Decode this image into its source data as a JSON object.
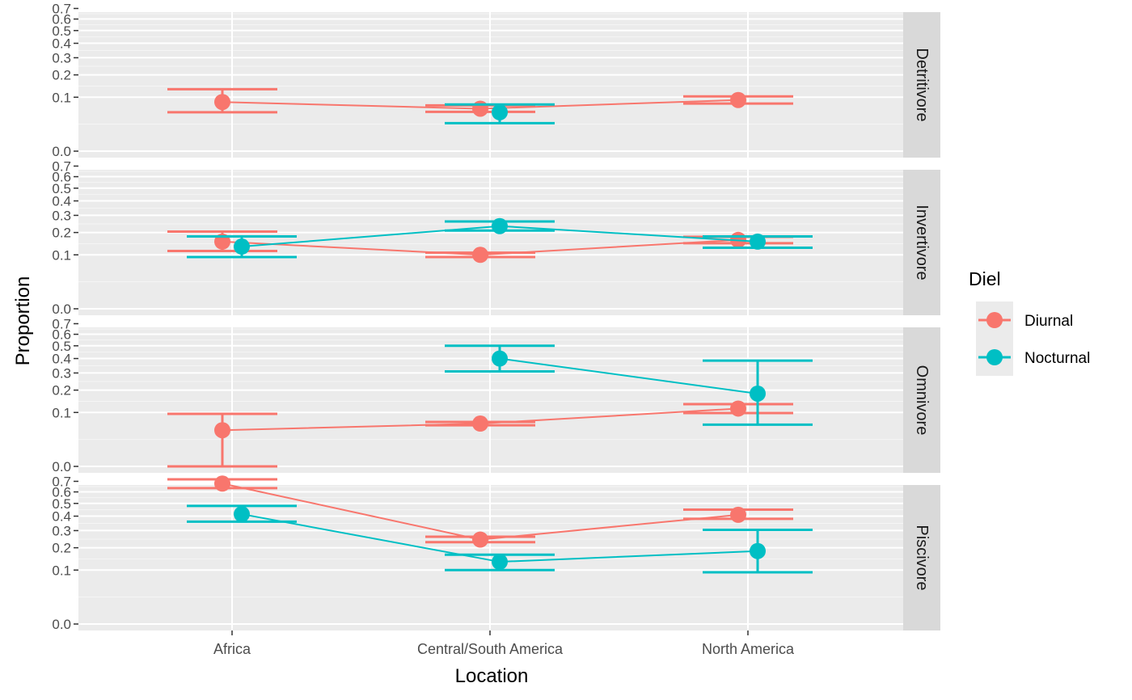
{
  "chart_data": {
    "type": "scatter",
    "subtype": "faceted point-range with connecting lines and error bars",
    "title": "",
    "xlabel": "Location",
    "ylabel": "Proportion",
    "categories": [
      "Africa",
      "Central/South America",
      "North America"
    ],
    "y_scale": "sqrt",
    "ylim": [
      0,
      0.75
    ],
    "y_ticks": [
      0.0,
      0.1,
      0.2,
      0.3,
      0.4,
      0.5,
      0.6,
      0.7
    ],
    "y_tick_labels": [
      "0.0",
      "0.1",
      "0.2",
      "0.3",
      "0.4",
      "0.5",
      "0.6",
      "0.7"
    ],
    "grid": true,
    "legend": {
      "title": "Diel",
      "position": "right",
      "entries": [
        {
          "name": "Diurnal",
          "color": "#F8766D"
        },
        {
          "name": "Nocturnal",
          "color": "#00BFC4"
        }
      ]
    },
    "facets": [
      {
        "label": "Detritivore",
        "series": [
          {
            "name": "Diurnal",
            "color": "#F8766D",
            "values": [
              0.083,
              0.062,
              0.09
            ],
            "lower": [
              0.052,
              0.053,
              0.078
            ],
            "upper": [
              0.132,
              0.072,
              0.103
            ]
          },
          {
            "name": "Nocturnal",
            "color": "#00BFC4",
            "values": [
              null,
              0.052,
              null
            ],
            "lower": [
              null,
              0.027,
              null
            ],
            "upper": [
              null,
              0.075,
              null
            ]
          }
        ]
      },
      {
        "label": "Invertivore",
        "series": [
          {
            "name": "Diurnal",
            "color": "#F8766D",
            "values": [
              0.155,
              0.1,
              0.163
            ],
            "lower": [
              0.115,
              0.092,
              0.148
            ],
            "upper": [
              0.205,
              0.108,
              0.178
            ]
          },
          {
            "name": "Nocturnal",
            "color": "#00BFC4",
            "values": [
              0.133,
              0.235,
              0.155
            ],
            "lower": [
              0.092,
              0.21,
              0.128
            ],
            "upper": [
              0.18,
              0.262,
              0.18
            ]
          }
        ]
      },
      {
        "label": "Omnivore",
        "series": [
          {
            "name": "Diurnal",
            "color": "#F8766D",
            "values": [
              0.045,
              0.063,
              0.115
            ],
            "lower": [
              0.0,
              0.058,
              0.098
            ],
            "upper": [
              0.095,
              0.068,
              0.133
            ]
          },
          {
            "name": "Nocturnal",
            "color": "#00BFC4",
            "values": [
              null,
              0.4,
              0.182
            ],
            "lower": [
              null,
              0.31,
              0.06
            ],
            "upper": [
              null,
              0.5,
              0.385
            ]
          }
        ]
      },
      {
        "label": "Piscivore",
        "series": [
          {
            "name": "Diurnal",
            "color": "#F8766D",
            "values": [
              0.678,
              0.245,
              0.41
            ],
            "lower": [
              0.635,
              0.23,
              0.38
            ],
            "upper": [
              0.72,
              0.262,
              0.45
            ]
          },
          {
            "name": "Nocturnal",
            "color": "#00BFC4",
            "values": [
              0.415,
              0.133,
              0.183
            ],
            "lower": [
              0.36,
              0.1,
              0.092
            ],
            "upper": [
              0.48,
              0.165,
              0.305
            ]
          }
        ]
      }
    ]
  }
}
